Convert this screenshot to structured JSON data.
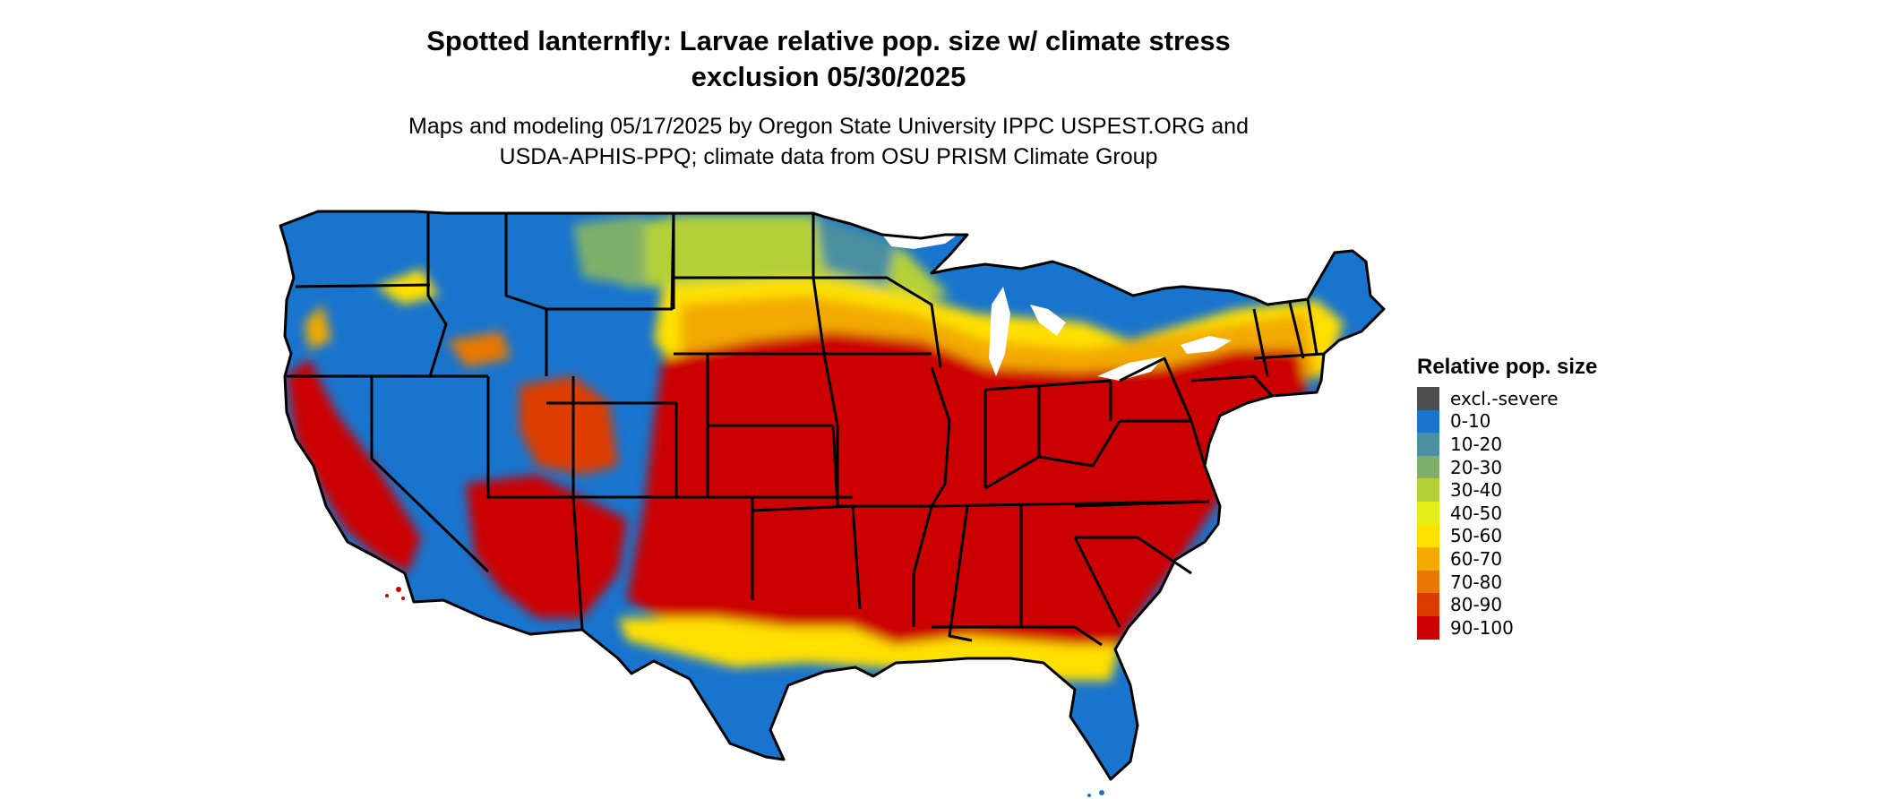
{
  "title_line1": "Spotted lanternfly: Larvae relative pop. size w/ climate stress",
  "title_line2": "exclusion 05/30/2025",
  "subtitle_line1": "Maps and modeling 05/17/2025 by Oregon State University IPPC USPEST.ORG and",
  "subtitle_line2": "USDA-APHIS-PPQ; climate data from OSU PRISM Climate Group",
  "legend": {
    "title": "Relative pop. size",
    "items": [
      {
        "label": "excl.-severe",
        "color": "#4d4d4d"
      },
      {
        "label": "0-10",
        "color": "#1874cd"
      },
      {
        "label": "10-20",
        "color": "#4a8fa0"
      },
      {
        "label": "20-30",
        "color": "#7fb06a"
      },
      {
        "label": "30-40",
        "color": "#b4d038"
      },
      {
        "label": "40-50",
        "color": "#e4ef1a"
      },
      {
        "label": "50-60",
        "color": "#ffe000"
      },
      {
        "label": "60-70",
        "color": "#f2aa00"
      },
      {
        "label": "70-80",
        "color": "#e87800"
      },
      {
        "label": "80-90",
        "color": "#dd3c00"
      },
      {
        "label": "90-100",
        "color": "#cc0000"
      }
    ]
  }
}
